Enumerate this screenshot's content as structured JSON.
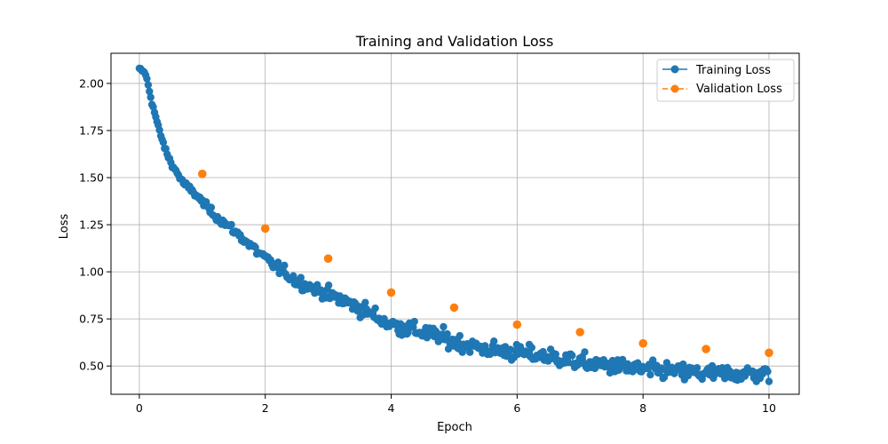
{
  "chart_data": {
    "type": "line",
    "title": "Training and Validation Loss",
    "xlabel": "Epoch",
    "ylabel": "Loss",
    "xlim": [
      -0.45,
      10.48
    ],
    "ylim": [
      0.35,
      2.16
    ],
    "xticks": [
      0,
      2,
      4,
      6,
      8,
      10
    ],
    "yticks": [
      0.5,
      0.75,
      1.0,
      1.25,
      1.5,
      1.75,
      2.0
    ],
    "grid": true,
    "legend": "top-right",
    "series": [
      {
        "name": "Training Loss",
        "color": "#1f77b4",
        "style": "solid",
        "marker": "circle",
        "x_start": 0,
        "x_end": 10,
        "points": 500,
        "anchors": [
          [
            0.0,
            2.08
          ],
          [
            0.1,
            2.05
          ],
          [
            0.2,
            1.9
          ],
          [
            0.3,
            1.77
          ],
          [
            0.4,
            1.66
          ],
          [
            0.5,
            1.58
          ],
          [
            0.7,
            1.47
          ],
          [
            0.9,
            1.41
          ],
          [
            1.0,
            1.37
          ],
          [
            1.2,
            1.3
          ],
          [
            1.5,
            1.22
          ],
          [
            2.0,
            1.07
          ],
          [
            2.5,
            0.95
          ],
          [
            3.0,
            0.88
          ],
          [
            3.5,
            0.81
          ],
          [
            4.0,
            0.72
          ],
          [
            4.5,
            0.68
          ],
          [
            5.0,
            0.63
          ],
          [
            5.5,
            0.59
          ],
          [
            6.0,
            0.57
          ],
          [
            6.5,
            0.55
          ],
          [
            7.0,
            0.52
          ],
          [
            7.5,
            0.5
          ],
          [
            8.0,
            0.48
          ],
          [
            8.5,
            0.47
          ],
          [
            9.0,
            0.46
          ],
          [
            9.5,
            0.46
          ],
          [
            10.0,
            0.46
          ]
        ],
        "noise": [
          0.01,
          0.045
        ]
      },
      {
        "name": "Validation Loss",
        "color": "#ff7f0e",
        "style": "dashed",
        "marker": "circle",
        "x": [
          1,
          2,
          3,
          4,
          5,
          6,
          7,
          8,
          9,
          10
        ],
        "values": [
          1.52,
          1.23,
          1.07,
          0.89,
          0.81,
          0.72,
          0.68,
          0.62,
          0.59,
          0.57
        ]
      }
    ]
  }
}
